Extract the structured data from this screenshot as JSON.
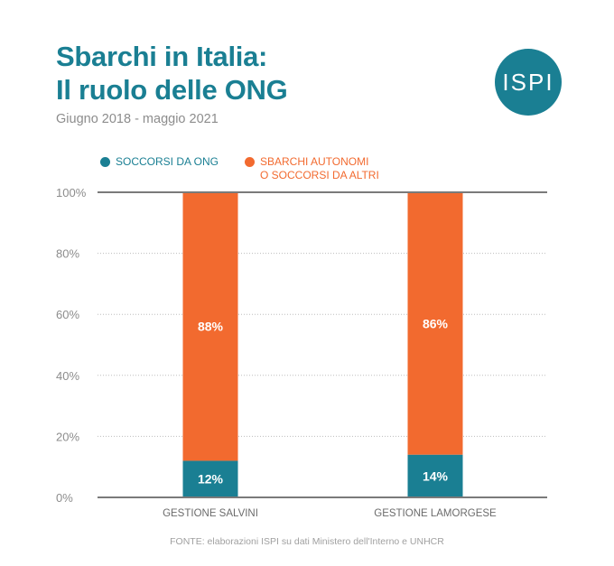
{
  "header": {
    "title_line1": "Sbarchi in Italia:",
    "title_line2": "Il ruolo delle ONG",
    "subtitle": "Giugno 2018 - maggio 2021",
    "logo_text": "ISPI"
  },
  "footer": {
    "source": "FONTE: elaborazioni ISPI su dati Ministero dell'Interno e UNHCR"
  },
  "colors": {
    "teal": "#1a7f93",
    "orange": "#f26a2f",
    "grid": "#bdbdbd",
    "axis": "#7a7a7a"
  },
  "chart_data": {
    "type": "bar",
    "stacked": true,
    "title": "",
    "xlabel": "",
    "ylabel": "",
    "categories": [
      "GESTIONE SALVINI",
      "GESTIONE LAMORGESE"
    ],
    "series": [
      {
        "name": "SOCCORSI DA ONG",
        "values": [
          12,
          14
        ],
        "labels": [
          "12%",
          "14%"
        ],
        "color": "#1a7f93"
      },
      {
        "name": "SBARCHI AUTONOMI\nO SOCCORSI DA ALTRI",
        "values": [
          88,
          86
        ],
        "labels": [
          "88%",
          "86%"
        ],
        "color": "#f26a2f"
      }
    ],
    "ylim": [
      0,
      100
    ],
    "yticks": [
      0,
      20,
      40,
      60,
      80,
      100
    ],
    "ytick_labels": [
      "0%",
      "20%",
      "40%",
      "60%",
      "80%",
      "100%"
    ],
    "grid": true,
    "legend_position": "top-left"
  }
}
